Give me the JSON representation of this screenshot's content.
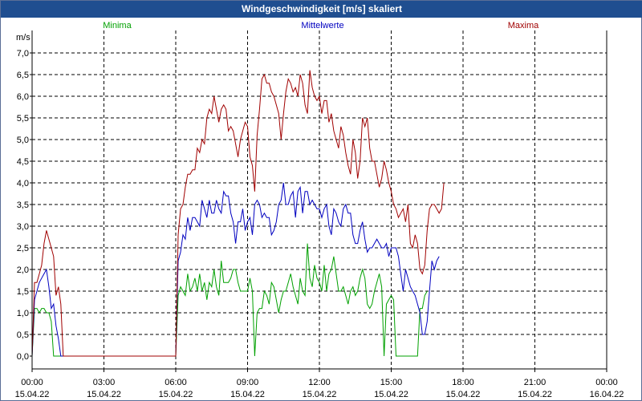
{
  "window_title": "Windgeschwindigkeit [m/s] skaliert",
  "chart_data": {
    "type": "line",
    "title": "Windgeschwindigkeit [m/s] skaliert",
    "ylabel": "m/s",
    "xlabel": "",
    "ylim": [
      0,
      7.5
    ],
    "xlim": [
      0,
      24
    ],
    "grid": true,
    "y_ticks": [
      "0,0",
      "0,5",
      "1,0",
      "1,5",
      "2,0",
      "2,5",
      "3,0",
      "3,5",
      "4,0",
      "4,5",
      "5,0",
      "5,5",
      "6,0",
      "6,5",
      "7,0"
    ],
    "x_ticks": [
      {
        "time": "00:00",
        "date": "15.04.22",
        "hour": 0
      },
      {
        "time": "03:00",
        "date": "15.04.22",
        "hour": 3
      },
      {
        "time": "06:00",
        "date": "15.04.22",
        "hour": 6
      },
      {
        "time": "09:00",
        "date": "15.04.22",
        "hour": 9
      },
      {
        "time": "12:00",
        "date": "15.04.22",
        "hour": 12
      },
      {
        "time": "15:00",
        "date": "15.04.22",
        "hour": 15
      },
      {
        "time": "18:00",
        "date": "15.04.22",
        "hour": 18
      },
      {
        "time": "21:00",
        "date": "15.04.22",
        "hour": 21
      },
      {
        "time": "00:00",
        "date": "16.04.22",
        "hour": 24
      }
    ],
    "series": [
      {
        "name": "Minima",
        "color": "#00a000",
        "x_step_hours": 0.1,
        "values": [
          0.0,
          1.1,
          1.1,
          1.0,
          1.1,
          1.1,
          1.0,
          1.0,
          0.8,
          0.0,
          0.0,
          0.0,
          0.0,
          0.0,
          0.0,
          0.0,
          0.0,
          0.0,
          0.0,
          0.0,
          0.0,
          0.0,
          0.0,
          0.0,
          0.0,
          0.0,
          0.0,
          0.0,
          0.0,
          0.0,
          0.0,
          0.0,
          0.0,
          0.0,
          0.0,
          0.0,
          0.0,
          0.0,
          0.0,
          0.0,
          0.0,
          0.0,
          0.0,
          0.0,
          0.0,
          0.0,
          0.0,
          0.0,
          0.0,
          0.0,
          0.0,
          0.0,
          0.0,
          0.0,
          0.0,
          0.0,
          0.0,
          0.0,
          0.0,
          0.0,
          0.0,
          1.4,
          1.6,
          1.5,
          1.4,
          1.9,
          1.5,
          1.6,
          1.8,
          1.5,
          1.9,
          1.5,
          1.7,
          1.3,
          1.7,
          1.6,
          2.0,
          1.6,
          1.4,
          2.2,
          1.7,
          1.7,
          1.7,
          1.8,
          2.0,
          2.0,
          1.7,
          1.5,
          1.5,
          1.5,
          1.5,
          1.8,
          1.5,
          0.0,
          1.0,
          1.1,
          1.1,
          1.5,
          1.4,
          1.2,
          1.7,
          1.6,
          1.3,
          1.0,
          1.3,
          1.5,
          1.5,
          1.7,
          1.9,
          1.6,
          1.4,
          1.2,
          1.8,
          1.5,
          1.4,
          2.6,
          1.8,
          1.6,
          2.1,
          1.8,
          1.7,
          1.5,
          2.1,
          1.5,
          1.9,
          2.0,
          2.3,
          1.9,
          1.5,
          1.5,
          1.6,
          1.4,
          1.2,
          1.5,
          1.6,
          1.4,
          1.5,
          1.8,
          2.0,
          1.8,
          1.2,
          1.1,
          1.2,
          1.5,
          1.7,
          1.9,
          1.6,
          0.0,
          1.2,
          1.3,
          1.4,
          1.3,
          0.0,
          0.0,
          0.0,
          0.0,
          0.0,
          0.0,
          0.0,
          0.0,
          0.0,
          0.0,
          1.1,
          1.1,
          1.4,
          1.5
        ]
      },
      {
        "name": "Mittelwerte",
        "color": "#0000c0",
        "x_step_hours": 0.1,
        "values": [
          0.0,
          1.3,
          1.5,
          1.7,
          1.8,
          1.9,
          2.0,
          1.6,
          1.1,
          1.2,
          0.7,
          0.4,
          0.0,
          0.0,
          0.0,
          0.0,
          0.0,
          0.0,
          0.0,
          0.0,
          0.0,
          0.0,
          0.0,
          0.0,
          0.0,
          0.0,
          0.0,
          0.0,
          0.0,
          0.0,
          0.0,
          0.0,
          0.0,
          0.0,
          0.0,
          0.0,
          0.0,
          0.0,
          0.0,
          0.0,
          0.0,
          0.0,
          0.0,
          0.0,
          0.0,
          0.0,
          0.0,
          0.0,
          0.0,
          0.0,
          0.0,
          0.0,
          0.0,
          0.0,
          0.0,
          0.0,
          0.0,
          0.0,
          0.0,
          0.0,
          0.0,
          2.2,
          2.4,
          2.8,
          2.7,
          3.2,
          2.9,
          3.2,
          3.2,
          3.1,
          3.0,
          3.6,
          3.4,
          3.2,
          3.6,
          3.3,
          3.3,
          3.6,
          3.4,
          3.3,
          3.8,
          3.7,
          3.7,
          3.3,
          3.1,
          2.6,
          3.1,
          3.1,
          3.4,
          2.9,
          3.1,
          3.2,
          2.8,
          3.5,
          3.6,
          3.5,
          3.2,
          3.3,
          3.2,
          3.2,
          2.8,
          2.9,
          3.1,
          3.5,
          3.6,
          4.0,
          3.5,
          3.5,
          3.7,
          3.8,
          3.2,
          3.8,
          3.9,
          3.3,
          3.8,
          3.8,
          3.5,
          3.6,
          3.5,
          3.4,
          3.4,
          3.2,
          3.4,
          3.5,
          3.0,
          2.8,
          3.4,
          3.3,
          3.1,
          3.0,
          3.4,
          3.5,
          3.3,
          3.3,
          2.8,
          2.6,
          2.6,
          2.9,
          3.1,
          2.7,
          2.4,
          2.5,
          2.5,
          2.6,
          2.7,
          2.6,
          2.5,
          2.5,
          2.6,
          2.3,
          2.5,
          2.5,
          2.5,
          2.3,
          1.9,
          1.5,
          2.0,
          1.8,
          1.6,
          1.5,
          1.4,
          1.2,
          1.0,
          0.5,
          0.5,
          0.8,
          1.5,
          2.2,
          2.0,
          2.2,
          2.3
        ]
      },
      {
        "name": "Maxima",
        "color": "#a00000",
        "x_step_hours": 0.1,
        "values": [
          0.0,
          1.7,
          1.7,
          1.9,
          2.1,
          2.6,
          2.9,
          2.7,
          2.5,
          2.3,
          1.4,
          1.6,
          1.2,
          0.0,
          0.0,
          0.0,
          0.0,
          0.0,
          0.0,
          0.0,
          0.0,
          0.0,
          0.0,
          0.0,
          0.0,
          0.0,
          0.0,
          0.0,
          0.0,
          0.0,
          0.0,
          0.0,
          0.0,
          0.0,
          0.0,
          0.0,
          0.0,
          0.0,
          0.0,
          0.0,
          0.0,
          0.0,
          0.0,
          0.0,
          0.0,
          0.0,
          0.0,
          0.0,
          0.0,
          0.0,
          0.0,
          0.0,
          0.0,
          0.0,
          0.0,
          0.0,
          0.0,
          0.0,
          0.0,
          0.0,
          0.0,
          2.8,
          3.4,
          3.5,
          3.9,
          4.2,
          4.2,
          4.3,
          4.3,
          4.8,
          4.7,
          5.0,
          4.9,
          5.5,
          5.7,
          5.6,
          6.0,
          5.7,
          5.4,
          5.7,
          5.8,
          5.7,
          5.2,
          5.3,
          5.2,
          4.9,
          4.6,
          5.0,
          5.2,
          5.4,
          5.3,
          4.6,
          4.4,
          3.8,
          5.1,
          5.7,
          6.4,
          6.5,
          6.3,
          6.3,
          6.1,
          6.0,
          5.8,
          5.6,
          5.0,
          5.6,
          6.1,
          6.4,
          6.3,
          6.1,
          6.2,
          6.0,
          6.5,
          6.3,
          5.8,
          5.6,
          6.6,
          6.2,
          6.0,
          5.9,
          6.0,
          5.6,
          5.9,
          5.9,
          5.4,
          5.6,
          5.2,
          5.0,
          4.8,
          5.3,
          5.1,
          4.7,
          4.4,
          4.2,
          5.0,
          4.7,
          4.1,
          4.5,
          5.5,
          5.3,
          5.5,
          4.8,
          4.5,
          4.5,
          4.2,
          3.9,
          4.1,
          4.5,
          4.3,
          4.0,
          3.8,
          3.5,
          3.4,
          3.2,
          3.3,
          3.4,
          3.1,
          3.5,
          2.6,
          2.5,
          2.8,
          2.6,
          2.0,
          1.9,
          2.1,
          2.9,
          3.4,
          3.5,
          3.5,
          3.4,
          3.3,
          3.4,
          4.0
        ]
      }
    ]
  }
}
